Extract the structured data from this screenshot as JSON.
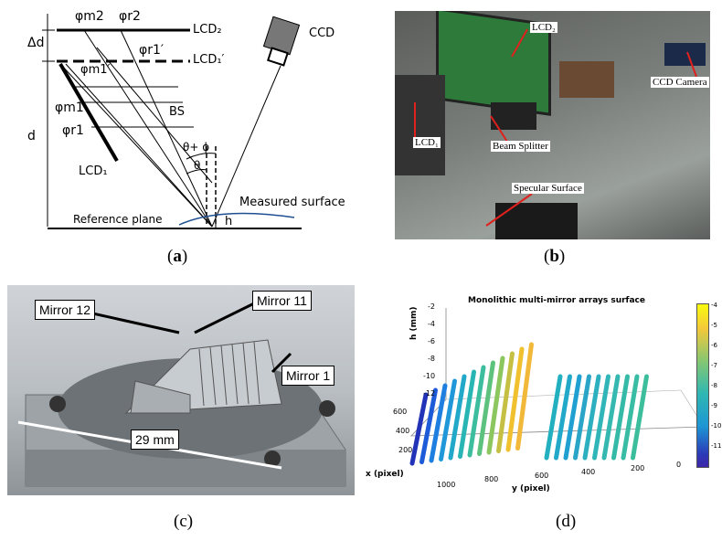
{
  "panel_a": {
    "labels": {
      "phi_m2": "φm2",
      "phi_r2": "φr2",
      "delta_d": "Δd",
      "lcd2": "LCD₂",
      "phi_r1p": "φr1′",
      "lcd1p": "LCD₁′",
      "phi_m1p": "φm1′",
      "ccd": "CCD",
      "phi_m1": "φm1",
      "bs": "BS",
      "phi_r1": "φr1",
      "d": "d",
      "theta_phi": "θ+ ϕ",
      "theta": "θ",
      "lcd1": "LCD₁",
      "measured_surface": "Measured surface",
      "h": "h",
      "reference_plane": "Reference plane"
    },
    "caption_open": "(",
    "caption_letter": "a",
    "caption_close": ")"
  },
  "panel_b": {
    "labels": {
      "lcd2": "LCD₂",
      "ccd_camera": "CCD Camera",
      "lcd1": "LCD₁",
      "beam_splitter": "Beam Splitter",
      "specular_surface": "Specular Surface"
    },
    "caption_open": "(",
    "caption_letter": "b",
    "caption_close": ")"
  },
  "panel_c": {
    "labels": {
      "mirror12": "Mirror 12",
      "mirror11": "Mirror 11",
      "mirror1": "Mirror 1",
      "dimension": "29 mm"
    },
    "caption": "(c)"
  },
  "panel_d": {
    "caption": "(d)",
    "colors": {
      "stripe_blue": "#1f4fd0",
      "stripe_cyan": "#22b8c2",
      "stripe_yellow": "#f2d22a"
    }
  },
  "chart_data": {
    "type": "scatter",
    "title": "Monolithic multi-mirror arrays surface",
    "xlabel": "x (pixel)",
    "ylabel": "y (pixel)",
    "zlabel": "h (mm)",
    "z_ticks": [
      "-2",
      "-4",
      "-6",
      "-8",
      "-10",
      "-12"
    ],
    "x_ticks": [
      "600",
      "400",
      "200",
      "1000"
    ],
    "y_ticks": [
      "800",
      "600",
      "400",
      "200",
      "0"
    ],
    "colorbar_ticks": [
      "-4",
      "-5",
      "-6",
      "-7",
      "-8",
      "-9",
      "-10",
      "-11"
    ],
    "zlim": [
      -12,
      -2
    ],
    "grid": true,
    "colormap": "parula"
  }
}
